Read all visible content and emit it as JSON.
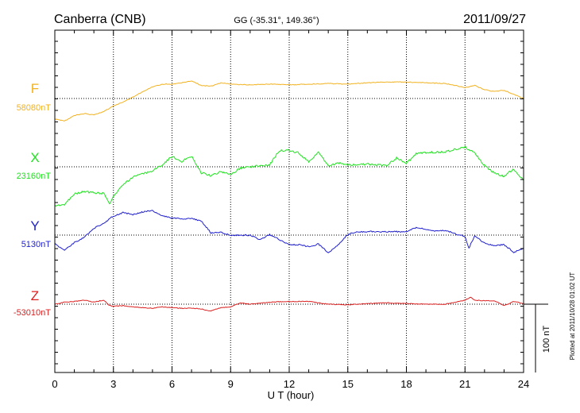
{
  "header": {
    "station": "Canberra (CNB)",
    "coords": "GG (-35.31°, 149.36°)",
    "date": "2011/09/27"
  },
  "colors": {
    "F": "#f2b21f",
    "X": "#1fe31f",
    "Y": "#1f1fcf",
    "Z": "#dd1f1f",
    "axis": "#000000",
    "grid": "#000000"
  },
  "chart_data": {
    "type": "line",
    "xlabel": "U T (hour)",
    "xlim": [
      0,
      24
    ],
    "xticks": [
      0,
      3,
      6,
      9,
      12,
      15,
      18,
      21,
      24
    ],
    "grid": true,
    "scale_bar": {
      "label": "100 nT",
      "value_nT": 100
    },
    "plotted_note": "Plotted at 2011/10/28 01:02 UT",
    "series": [
      {
        "name": "F",
        "baseline_label": "58080nT",
        "baseline_nT": 58080,
        "x": [
          0,
          0.5,
          1,
          1.5,
          2,
          2.5,
          3,
          3.5,
          4,
          4.5,
          5,
          5.5,
          6,
          6.5,
          7,
          7.5,
          8,
          8.5,
          9,
          10,
          11,
          12,
          13,
          14,
          15,
          16,
          17,
          18,
          19,
          20,
          21,
          21.5,
          22,
          22.5,
          23,
          23.5,
          24
        ],
        "y": [
          58050,
          58047,
          58055,
          58058,
          58056,
          58061,
          58069,
          58075,
          58082,
          58090,
          58097,
          58101,
          58101,
          58103,
          58106,
          58099,
          58098,
          58103,
          58101,
          58100,
          58101,
          58100,
          58101,
          58102,
          58101,
          58103,
          58104,
          58104,
          58103,
          58102,
          58096,
          58099,
          58093,
          58090,
          58092,
          58086,
          58080
        ]
      },
      {
        "name": "X",
        "baseline_label": "23160nT",
        "baseline_nT": 23160,
        "x": [
          0,
          0.5,
          1,
          1.5,
          2,
          2.5,
          2.8,
          3,
          3.5,
          4,
          4.5,
          5,
          5.5,
          6,
          6.5,
          7,
          7.5,
          8,
          8.5,
          9,
          9.5,
          10,
          11,
          11.5,
          12,
          12.5,
          13,
          13.5,
          14,
          14.5,
          15,
          16,
          17,
          17.5,
          18,
          18.5,
          19,
          20,
          21,
          21.5,
          22,
          22.5,
          23,
          23.5,
          24
        ],
        "y": [
          23103,
          23105,
          23120,
          23124,
          23122,
          23121,
          23106,
          23117,
          23134,
          23145,
          23150,
          23154,
          23163,
          23175,
          23168,
          23176,
          23151,
          23147,
          23153,
          23148,
          23158,
          23160,
          23163,
          23184,
          23184,
          23180,
          23167,
          23182,
          23161,
          23166,
          23163,
          23164,
          23162,
          23173,
          23165,
          23179,
          23181,
          23182,
          23189,
          23180,
          23162,
          23151,
          23146,
          23157,
          23140
        ]
      },
      {
        "name": "Y",
        "baseline_label": "5130nT",
        "baseline_nT": 5130,
        "x": [
          0,
          0.5,
          1,
          1.5,
          2,
          2.5,
          3,
          3.5,
          4,
          4.5,
          5,
          5.5,
          6,
          6.5,
          7,
          7.5,
          8,
          8.5,
          9,
          9.5,
          10,
          10.5,
          11,
          11.5,
          12,
          12.5,
          13,
          13.5,
          14,
          14.5,
          15,
          15.5,
          16,
          17,
          18,
          18.5,
          19,
          19.5,
          20,
          20.5,
          21,
          21.2,
          21.5,
          22,
          22.5,
          23,
          23.5,
          24
        ],
        "y": [
          5117,
          5108,
          5119,
          5127,
          5140,
          5147,
          5158,
          5163,
          5160,
          5164,
          5166,
          5158,
          5155,
          5154,
          5154,
          5151,
          5133,
          5134,
          5130,
          5130,
          5130,
          5123,
          5131,
          5123,
          5116,
          5116,
          5113,
          5117,
          5104,
          5116,
          5131,
          5135,
          5135,
          5135,
          5135,
          5141,
          5139,
          5136,
          5137,
          5132,
          5128,
          5111,
          5129,
          5118,
          5115,
          5116,
          5105,
          5111
        ]
      },
      {
        "name": "Z",
        "baseline_label": "-53010nT",
        "baseline_nT": -53010,
        "x": [
          0,
          0.5,
          1,
          1.5,
          2,
          2.5,
          2.8,
          3,
          3.5,
          4,
          4.5,
          5,
          5.5,
          6,
          6.5,
          7,
          7.5,
          8,
          8.5,
          9,
          9.5,
          10,
          11,
          12,
          13,
          14,
          15,
          16,
          17,
          18,
          19,
          20,
          20.5,
          21,
          21.3,
          21.5,
          22,
          22.5,
          23,
          23.5,
          24
        ],
        "y": [
          -53010,
          -53007,
          -53006,
          -53004,
          -53007,
          -53004,
          -53012,
          -53013,
          -53012,
          -53014,
          -53015,
          -53016,
          -53014,
          -53015,
          -53016,
          -53016,
          -53017,
          -53020,
          -53015,
          -53014,
          -53008,
          -53010,
          -53007,
          -53006,
          -53006,
          -53010,
          -53011,
          -53009,
          -53008,
          -53009,
          -53010,
          -53010,
          -53007,
          -53004,
          -53000,
          -53004,
          -53005,
          -53005,
          -53012,
          -53006,
          -53009
        ]
      }
    ]
  }
}
